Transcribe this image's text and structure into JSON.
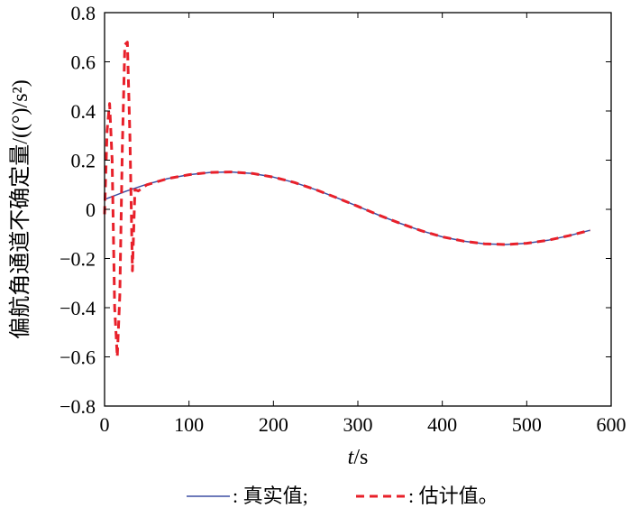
{
  "chart_data": {
    "type": "line",
    "xlabel_var": "t",
    "xlabel_unit": "s",
    "ylabel": "偏航角通道不确定量/((°)/s²)",
    "xlim": [
      0,
      600
    ],
    "ylim": [
      -0.8,
      0.8
    ],
    "x_ticks": [
      "0",
      "100",
      "200",
      "300",
      "400",
      "500",
      "600"
    ],
    "y_ticks": [
      "0.8",
      "0.6",
      "0.4",
      "0.2",
      "0",
      "−0.2",
      "−0.4",
      "−0.6",
      "−0.8"
    ],
    "grid": false,
    "legend_position": "bottom",
    "series": [
      {
        "name": ": 真实值;",
        "color": "#3d4fa3",
        "style": "solid",
        "x": [
          0,
          25,
          50,
          75,
          100,
          125,
          150,
          175,
          200,
          225,
          250,
          275,
          300,
          325,
          350,
          375,
          400,
          425,
          450,
          475,
          500,
          525,
          550,
          575
        ],
        "y": [
          0.04,
          0.073,
          0.102,
          0.125,
          0.141,
          0.15,
          0.152,
          0.146,
          0.131,
          0.109,
          0.08,
          0.047,
          0.012,
          -0.024,
          -0.057,
          -0.087,
          -0.112,
          -0.129,
          -0.14,
          -0.143,
          -0.138,
          -0.126,
          -0.107,
          -0.085
        ]
      },
      {
        "name": ": 估计值。",
        "color": "#e8202a",
        "style": "dashed",
        "x": [
          0,
          3,
          6,
          9,
          12,
          15,
          18,
          21,
          24,
          27,
          30,
          33,
          36,
          40,
          50,
          75,
          100,
          125,
          150,
          175,
          200,
          225,
          250,
          275,
          300,
          325,
          350,
          375,
          400,
          425,
          450,
          475,
          500,
          525,
          550,
          575
        ],
        "y": [
          -0.02,
          0.32,
          0.43,
          0.2,
          -0.4,
          -0.6,
          -0.35,
          0.25,
          0.67,
          0.68,
          0.3,
          -0.25,
          0.08,
          0.075,
          0.1,
          0.125,
          0.141,
          0.15,
          0.152,
          0.146,
          0.131,
          0.109,
          0.08,
          0.047,
          0.012,
          -0.024,
          -0.057,
          -0.087,
          -0.112,
          -0.129,
          -0.14,
          -0.143,
          -0.138,
          -0.126,
          -0.107,
          -0.085
        ]
      }
    ]
  }
}
